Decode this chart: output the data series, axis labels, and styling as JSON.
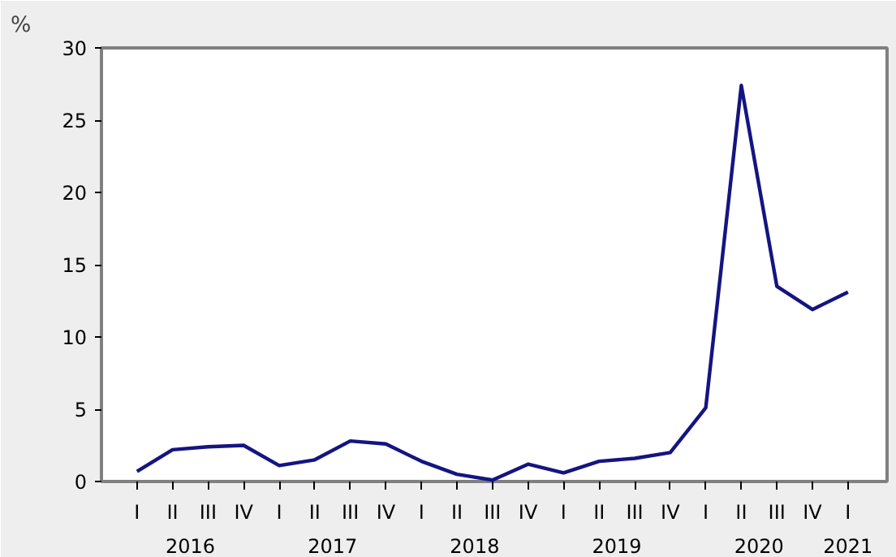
{
  "chart_data": {
    "type": "line",
    "ylabel": "%",
    "categories": [
      "I",
      "II",
      "III",
      "IV",
      "I",
      "II",
      "III",
      "IV",
      "I",
      "II",
      "III",
      "IV",
      "I",
      "II",
      "III",
      "IV",
      "I",
      "II",
      "III",
      "IV",
      "I"
    ],
    "series": [
      {
        "color": "#141482",
        "values": [
          0.7,
          2.2,
          2.4,
          2.5,
          1.1,
          1.5,
          2.8,
          2.6,
          1.4,
          0.5,
          0.1,
          1.2,
          0.6,
          1.4,
          1.6,
          2.0,
          5.1,
          27.4,
          13.5,
          11.9,
          13.1
        ]
      }
    ],
    "annotations": [
      "2016",
      "2017",
      "2018",
      "2019",
      "2020",
      "2021"
    ],
    "ylim": [
      0,
      30
    ],
    "yticks": [
      0,
      5,
      10,
      15,
      20,
      25,
      30
    ],
    "grid": false,
    "marker": "none",
    "line_style": "solid"
  }
}
